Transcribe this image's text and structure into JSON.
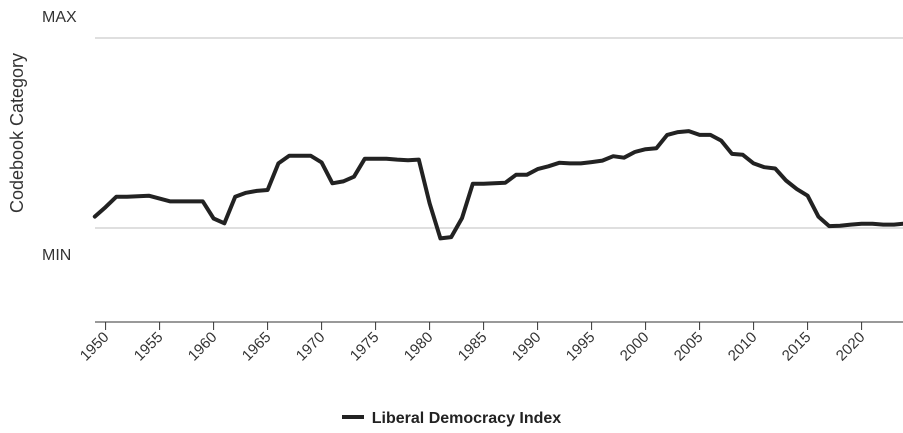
{
  "chart_data": {
    "type": "line",
    "ylabel": "Codebook Category",
    "xlabel": "",
    "y_tick_labels": [
      {
        "value": 1,
        "label": "MAX"
      },
      {
        "value": 0,
        "label": "MIN"
      }
    ],
    "ylim": [
      -0.5,
      1.1
    ],
    "xlim": [
      1949.3,
      2024.3
    ],
    "x_ticks": [
      1950,
      1955,
      1960,
      1965,
      1970,
      1975,
      1980,
      1985,
      1990,
      1995,
      2000,
      2005,
      2010,
      2015,
      2020
    ],
    "grid": true,
    "legend_position": "bottom",
    "series": [
      {
        "name": "Liberal Democracy Index",
        "color": "#222222",
        "x": [
          1949,
          1950,
          1951,
          1952,
          1953,
          1954,
          1955,
          1956,
          1957,
          1958,
          1959,
          1960,
          1961,
          1962,
          1963,
          1964,
          1965,
          1966,
          1967,
          1968,
          1969,
          1970,
          1971,
          1972,
          1973,
          1974,
          1975,
          1976,
          1977,
          1978,
          1979,
          1980,
          1981,
          1982,
          1983,
          1984,
          1985,
          1986,
          1987,
          1988,
          1989,
          1990,
          1991,
          1992,
          1993,
          1994,
          1995,
          1996,
          1997,
          1998,
          1999,
          2000,
          2001,
          2002,
          2003,
          2004,
          2005,
          2006,
          2007,
          2008,
          2009,
          2010,
          2011,
          2012,
          2013,
          2014,
          2015,
          2016,
          2017,
          2018,
          2019,
          2020,
          2021,
          2022,
          2023,
          2024
        ],
        "y": [
          0.06,
          0.11,
          0.165,
          0.165,
          0.167,
          0.17,
          0.155,
          0.14,
          0.14,
          0.14,
          0.14,
          0.05,
          0.025,
          0.165,
          0.185,
          0.195,
          0.2,
          0.34,
          0.38,
          0.38,
          0.38,
          0.345,
          0.235,
          0.245,
          0.27,
          0.365,
          0.365,
          0.365,
          0.36,
          0.357,
          0.36,
          0.13,
          -0.055,
          -0.048,
          0.052,
          0.233,
          0.233,
          0.235,
          0.238,
          0.28,
          0.28,
          0.31,
          0.325,
          0.343,
          0.34,
          0.34,
          0.347,
          0.355,
          0.378,
          0.37,
          0.4,
          0.415,
          0.42,
          0.49,
          0.505,
          0.51,
          0.49,
          0.49,
          0.46,
          0.39,
          0.385,
          0.34,
          0.32,
          0.313,
          0.25,
          0.205,
          0.17,
          0.06,
          0.01,
          0.012,
          0.018,
          0.022,
          0.022,
          0.018,
          0.018,
          0.022
        ]
      }
    ]
  }
}
